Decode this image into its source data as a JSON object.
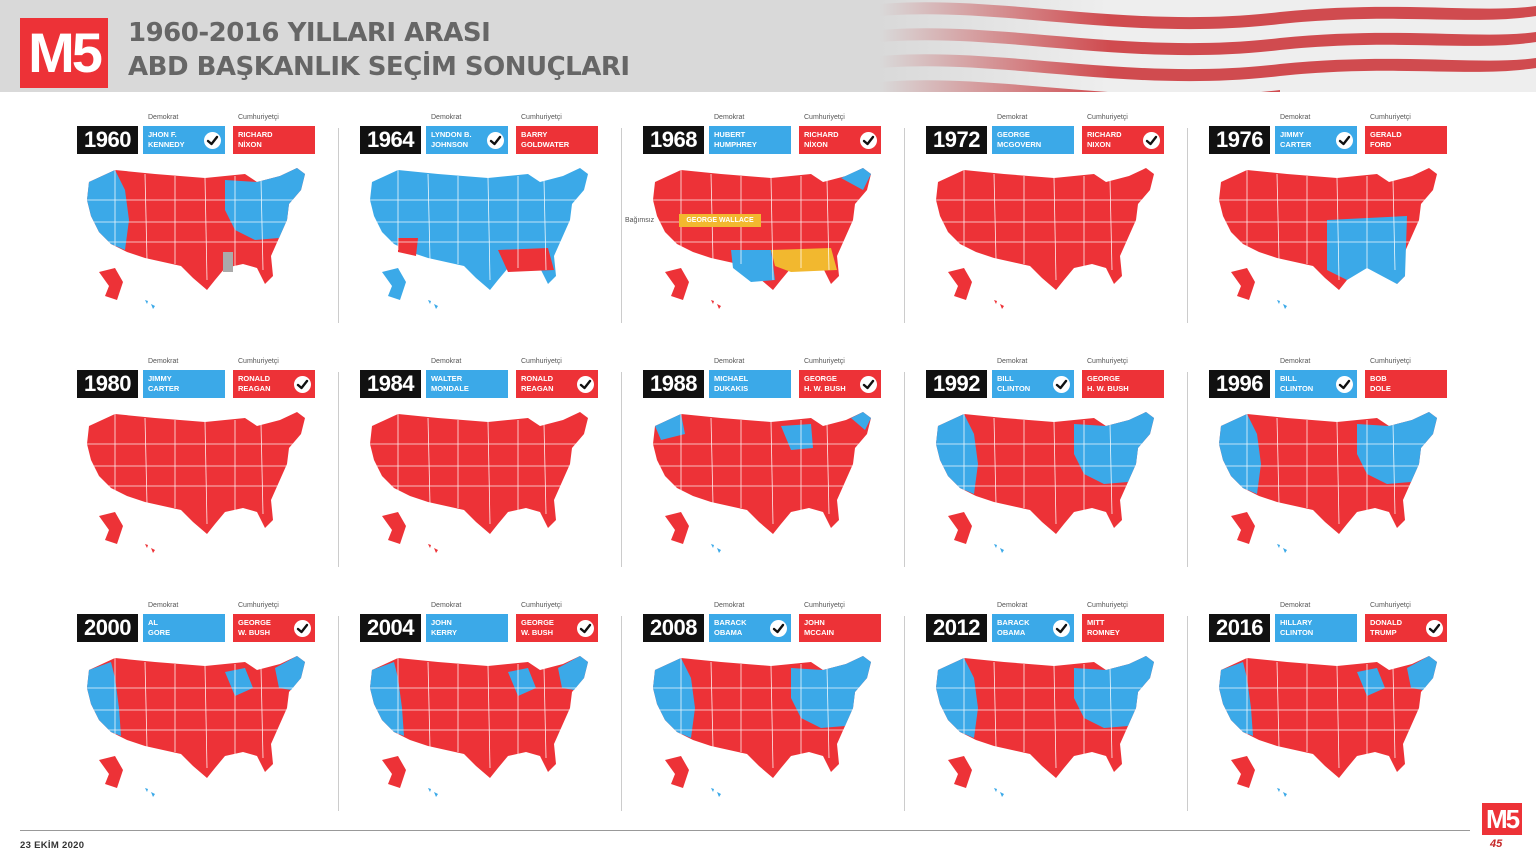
{
  "header": {
    "logo_text": "M5",
    "title_line1": "1960-2016 YILLARI ARASI",
    "title_line2": "ABD BAŞKANLIK SEÇİM SONUÇLARI"
  },
  "colors": {
    "democrat": "#3ba9e8",
    "republican": "#ed3237",
    "independent": "#f2b82f",
    "other": "#aaaaaa"
  },
  "party_labels": {
    "democrat": "Demokrat",
    "republican": "Cumhuriyetçi",
    "independent": "Bağımsız"
  },
  "elections": [
    {
      "year": "1960",
      "dem1": "JHON F.",
      "dem2": "KENNEDY",
      "rep1": "RICHARD",
      "rep2": "NİXON",
      "winner": "d",
      "map_tint": "mixed_dem"
    },
    {
      "year": "1964",
      "dem1": "LYNDON B.",
      "dem2": "JOHNSON",
      "rep1": "BARRY",
      "rep2": "GOLDWATER",
      "winner": "d",
      "map_tint": "blue"
    },
    {
      "year": "1968",
      "dem1": "HUBERT",
      "dem2": "HUMPHREY",
      "rep1": "RICHARD",
      "rep2": "NİXON",
      "winner": "r",
      "map_tint": "red_south_yellow"
    },
    {
      "year": "1972",
      "dem1": "GEORGE",
      "dem2": "MCGOVERN",
      "rep1": "RICHARD",
      "rep2": "NIXON",
      "winner": "r",
      "map_tint": "red"
    },
    {
      "year": "1976",
      "dem1": "JIMMY",
      "dem2": "CARTER",
      "rep1": "GERALD",
      "rep2": "FORD",
      "winner": "d",
      "map_tint": "mixed_east"
    },
    {
      "year": "1980",
      "dem1": "JIMMY",
      "dem2": "CARTER",
      "rep1": "RONALD",
      "rep2": "REAGAN",
      "winner": "r",
      "map_tint": "red"
    },
    {
      "year": "1984",
      "dem1": "WALTER",
      "dem2": "MONDALE",
      "rep1": "RONALD",
      "rep2": "REAGAN",
      "winner": "r",
      "map_tint": "red"
    },
    {
      "year": "1988",
      "dem1": "MICHAEL",
      "dem2": "DUKAKIS",
      "rep1": "GEORGE",
      "rep2": "H. W. BUSH",
      "winner": "r",
      "map_tint": "red_nw"
    },
    {
      "year": "1992",
      "dem1": "BILL",
      "dem2": "CLINTON",
      "rep1": "GEORGE",
      "rep2": "H. W. BUSH",
      "winner": "d",
      "map_tint": "mixed_dem"
    },
    {
      "year": "1996",
      "dem1": "BILL",
      "dem2": "CLINTON",
      "rep1": "BOB",
      "rep2": "DOLE",
      "winner": "d",
      "map_tint": "mixed_dem"
    },
    {
      "year": "2000",
      "dem1": "AL",
      "dem2": "GORE",
      "rep1": "GEORGE",
      "rep2": "W. BUSH",
      "winner": "r",
      "map_tint": "mixed_rep"
    },
    {
      "year": "2004",
      "dem1": "JOHN",
      "dem2": "KERRY",
      "rep1": "GEORGE",
      "rep2": "W. BUSH",
      "winner": "r",
      "map_tint": "mixed_rep"
    },
    {
      "year": "2008",
      "dem1": "BARACK",
      "dem2": "OBAMA",
      "rep1": "JOHN",
      "rep2": "MCCAIN",
      "winner": "d",
      "map_tint": "mixed_dem"
    },
    {
      "year": "2012",
      "dem1": "BARACK",
      "dem2": "OBAMA",
      "rep1": "MITT",
      "rep2": "ROMNEY",
      "winner": "d",
      "map_tint": "mixed_dem"
    },
    {
      "year": "2016",
      "dem1": "HILLARY",
      "dem2": "CLINTON",
      "rep1": "DONALD",
      "rep2": "TRUMP",
      "winner": "r",
      "map_tint": "mixed_rep"
    }
  ],
  "independent_1968": "GEORGE WALLACE",
  "footer": {
    "date": "23 EKİM 2020",
    "logo_text": "M5",
    "badge": "45"
  }
}
